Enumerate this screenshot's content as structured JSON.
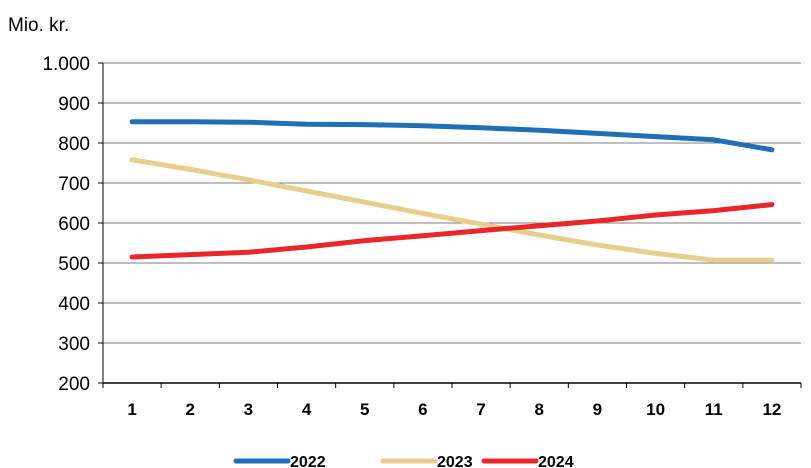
{
  "chart_data": {
    "type": "line",
    "ylabel": "Mio. kr.",
    "ylim": [
      200,
      1000
    ],
    "y_ticks": [
      "200",
      "300",
      "400",
      "500",
      "600",
      "700",
      "800",
      "900",
      "1.000"
    ],
    "y_tick_values": [
      200,
      300,
      400,
      500,
      600,
      700,
      800,
      900,
      1000
    ],
    "x": [
      "1",
      "2",
      "3",
      "4",
      "5",
      "6",
      "7",
      "8",
      "9",
      "10",
      "11",
      "12"
    ],
    "grid": true,
    "legend_position": "bottom",
    "series": [
      {
        "name": "2022",
        "color": "#1F6FB5",
        "values": [
          853,
          853,
          852,
          847,
          846,
          843,
          838,
          832,
          824,
          816,
          808,
          783
        ]
      },
      {
        "name": "2023",
        "color": "#E8CE8E",
        "values": [
          758,
          734,
          708,
          680,
          652,
          624,
          597,
          570,
          545,
          524,
          507,
          507
        ]
      },
      {
        "name": "2024",
        "color": "#E8262B",
        "values": [
          515,
          521,
          527,
          540,
          556,
          568,
          581,
          593,
          605,
          620,
          631,
          646
        ]
      }
    ]
  }
}
